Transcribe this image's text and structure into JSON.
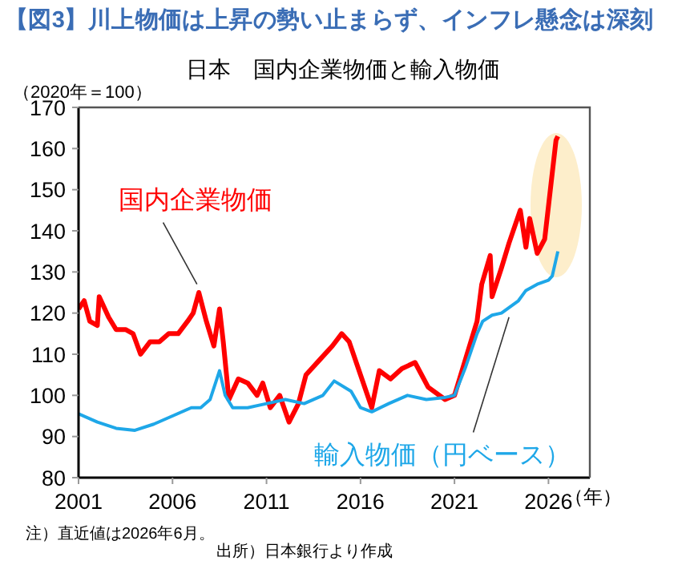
{
  "chart_data": {
    "type": "line",
    "title": "【図3】川上物価は上昇の勢い止まらず、インフレ懸念は深刻",
    "subtitle": "日本　国内企業物価と輸入物価",
    "ylabel": "（2020年＝100）",
    "xlabel": "（年）",
    "annotations": [
      "注）直近値は2026年6月。",
      "出所）日本銀行より作成"
    ],
    "xlim": [
      2001,
      2028.2
    ],
    "xticks": [
      2001,
      2006,
      2011,
      2016,
      2021,
      2026
    ],
    "ylim": [
      80,
      170
    ],
    "yticks": [
      80,
      90,
      100,
      110,
      120,
      130,
      140,
      150,
      160,
      170
    ],
    "grid": false,
    "marker": "none",
    "line_style": "solid",
    "series": [
      {
        "name": "国内企業物価",
        "color": "#ff0000",
        "x": [
          2001.0,
          2001.3,
          2001.6,
          2002.0,
          2002.1,
          2002.6,
          2003.0,
          2003.5,
          2003.9,
          2004.3,
          2004.8,
          2005.3,
          2005.8,
          2006.3,
          2006.8,
          2007.1,
          2007.4,
          2007.8,
          2008.2,
          2008.5,
          2008.7,
          2009.0,
          2009.5,
          2010.0,
          2010.5,
          2010.8,
          2011.2,
          2011.7,
          2012.2,
          2012.7,
          2013.1,
          2013.9,
          2014.5,
          2015.0,
          2015.4,
          2016.0,
          2016.6,
          2017.0,
          2017.6,
          2018.2,
          2018.9,
          2019.6,
          2020.5,
          2021.0,
          2021.6,
          2022.2,
          2022.45,
          2022.9,
          2023.0,
          2023.5,
          2023.9,
          2024.5,
          2024.8,
          2025.0,
          2025.4,
          2025.8,
          2026.1,
          2026.4,
          2026.5
        ],
        "values": [
          121,
          123,
          118,
          117,
          124,
          119,
          116,
          116,
          115,
          110,
          113,
          113,
          115,
          115,
          118,
          120,
          125,
          118,
          112,
          121,
          113,
          99,
          104,
          103,
          100,
          103,
          97,
          100,
          93.5,
          98,
          105,
          109,
          112,
          115,
          113,
          105,
          97,
          106,
          104,
          106.5,
          108,
          102,
          99,
          100,
          109,
          118,
          127,
          134,
          124,
          131,
          137,
          145,
          136,
          143,
          134.5,
          138,
          150,
          162,
          163
        ]
      },
      {
        "name": "輸入物価（円ベース）",
        "color": "#1ea7e8",
        "x": [
          2001.0,
          2002.0,
          2003.0,
          2004.0,
          2005.0,
          2006.0,
          2007.0,
          2007.5,
          2008.0,
          2008.5,
          2008.8,
          2009.2,
          2010.0,
          2011.0,
          2012.0,
          2013.0,
          2014.0,
          2014.6,
          2015.5,
          2016.0,
          2016.6,
          2017.5,
          2018.5,
          2019.5,
          2020.5,
          2021.0,
          2021.6,
          2022.2,
          2022.5,
          2023.0,
          2023.5,
          2024.4,
          2024.8,
          2025.4,
          2026.0,
          2026.2,
          2026.5
        ],
        "values": [
          95.5,
          93.5,
          92,
          91.5,
          93,
          95,
          97,
          97,
          99,
          106,
          100,
          97,
          97,
          98,
          99,
          98,
          100,
          103.5,
          101,
          97,
          96,
          98,
          100,
          99,
          99.5,
          100,
          107,
          115,
          118,
          119.5,
          120,
          123,
          125.5,
          127,
          128,
          129,
          135
        ]
      }
    ]
  }
}
